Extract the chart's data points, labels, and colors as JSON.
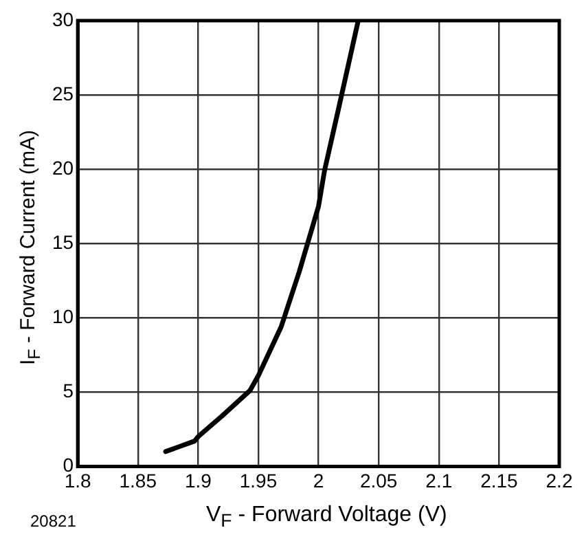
{
  "chart_data": {
    "type": "line",
    "xlabel": "V$_{F}$ - Forward Voltage (V)",
    "ylabel": "I$_{F}$ - Forward Current (mA)",
    "annotations": [
      "20821"
    ],
    "x": [
      1.873,
      1.897,
      1.9,
      1.92,
      1.943,
      1.95,
      1.969,
      1.984,
      2.0,
      2.005,
      2.017,
      2.033
    ],
    "series": [
      {
        "color": "#000000",
        "values": [
          1.0,
          1.7,
          2.0,
          3.4,
          5.1,
          6.1,
          9.4,
          13.1,
          17.5,
          19.9,
          24.2,
          30
        ]
      }
    ],
    "xlim": [
      1.8,
      2.2
    ],
    "xticks": [
      1.8,
      1.85,
      1.9,
      1.95,
      2,
      2.05,
      2.1,
      2.15,
      2.2
    ],
    "ylim": [
      0,
      30
    ],
    "yticks": [
      0,
      5,
      10,
      15,
      20,
      25,
      30
    ],
    "grid": true,
    "legend": false,
    "marker": "none",
    "line_style": "solid"
  }
}
